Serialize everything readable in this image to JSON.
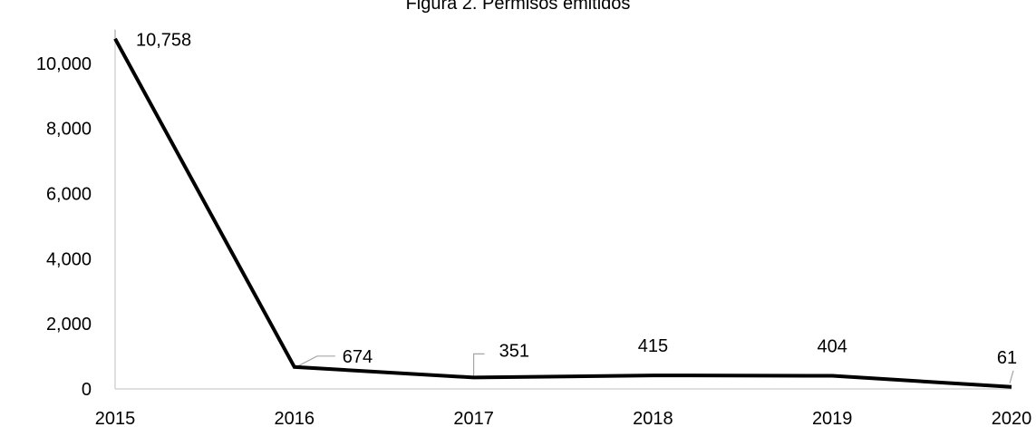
{
  "chart_data": {
    "type": "line",
    "title": "Figura 2. Permisos emitidos",
    "xlabel": "",
    "ylabel": "",
    "categories": [
      "2015",
      "2016",
      "2017",
      "2018",
      "2019",
      "2020"
    ],
    "series": [
      {
        "values": [
          10758,
          674,
          351,
          415,
          404,
          61
        ],
        "labels": [
          "10,758",
          "674",
          "351",
          "415",
          "404",
          "61"
        ]
      }
    ],
    "y_ticks": [
      "0",
      "2,000",
      "4,000",
      "6,000",
      "8,000",
      "10,000"
    ],
    "ylim": [
      0,
      11000
    ],
    "grid": false,
    "legend": "none",
    "colors": {
      "line": "#000000",
      "axis": "#bfbfbf",
      "leader": "#a6a6a6",
      "text": "#000000"
    }
  }
}
